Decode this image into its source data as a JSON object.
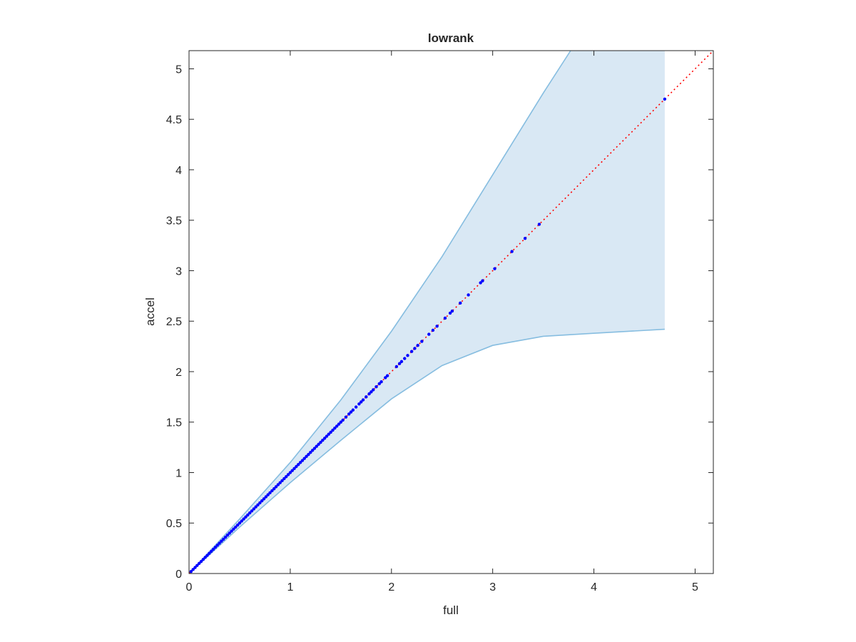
{
  "chart_data": {
    "type": "scatter",
    "title": "lowrank",
    "xlabel": "full",
    "ylabel": "accel",
    "xlim": [
      0,
      5.18
    ],
    "ylim": [
      0,
      5.18
    ],
    "xticks": [
      0,
      1,
      2,
      3,
      4,
      5
    ],
    "yticks": [
      0,
      0.5,
      1,
      1.5,
      2,
      2.5,
      3,
      3.5,
      4,
      4.5,
      5
    ],
    "xtick_labels": [
      "0",
      "1",
      "2",
      "3",
      "4",
      "5"
    ],
    "ytick_labels": [
      "0",
      "0.5",
      "1",
      "1.5",
      "2",
      "2.5",
      "3",
      "3.5",
      "4",
      "4.5",
      "5"
    ],
    "grid": false,
    "reference_line": {
      "style": "dotted",
      "color": "#ff0000",
      "x": [
        0,
        5.18
      ],
      "y": [
        0,
        5.18
      ]
    },
    "band": {
      "fill": "#d9e8f4",
      "edge": "#86bde0",
      "upper": {
        "x": [
          0,
          0.5,
          1,
          1.5,
          2,
          2.5,
          3,
          3.5,
          3.77
        ],
        "y": [
          0,
          0.54,
          1.1,
          1.72,
          2.4,
          3.14,
          3.95,
          4.76,
          5.18
        ]
      },
      "upper_cap": {
        "x": [
          3.77,
          4.7
        ],
        "y": [
          5.18,
          5.18
        ]
      },
      "right_edge": {
        "x": [
          4.7,
          4.7
        ],
        "y": [
          5.18,
          2.42
        ]
      },
      "lower": {
        "x": [
          0,
          0.5,
          1,
          1.5,
          2,
          2.5,
          3,
          3.5,
          4,
          4.7
        ],
        "y": [
          0,
          0.46,
          0.9,
          1.32,
          1.73,
          2.06,
          2.26,
          2.35,
          2.38,
          2.42
        ]
      }
    },
    "points": {
      "color": "#0000ff",
      "x": [
        0.02,
        0.04,
        0.06,
        0.08,
        0.1,
        0.12,
        0.14,
        0.16,
        0.18,
        0.2,
        0.22,
        0.24,
        0.26,
        0.28,
        0.3,
        0.32,
        0.34,
        0.36,
        0.38,
        0.4,
        0.42,
        0.44,
        0.46,
        0.48,
        0.5,
        0.52,
        0.54,
        0.56,
        0.58,
        0.6,
        0.62,
        0.64,
        0.66,
        0.68,
        0.7,
        0.72,
        0.74,
        0.76,
        0.78,
        0.8,
        0.82,
        0.84,
        0.86,
        0.88,
        0.9,
        0.92,
        0.94,
        0.96,
        0.98,
        1.0,
        1.02,
        1.04,
        1.06,
        1.08,
        1.1,
        1.12,
        1.14,
        1.16,
        1.18,
        1.2,
        1.22,
        1.24,
        1.26,
        1.28,
        1.3,
        1.32,
        1.34,
        1.36,
        1.38,
        1.4,
        1.42,
        1.44,
        1.46,
        1.48,
        1.5,
        1.52,
        1.55,
        1.58,
        1.6,
        1.62,
        1.65,
        1.68,
        1.7,
        1.72,
        1.75,
        1.78,
        1.8,
        1.82,
        1.85,
        1.88,
        1.9,
        1.94,
        1.96,
        2.05,
        2.08,
        2.1,
        2.13,
        2.16,
        2.2,
        2.23,
        2.26,
        2.3,
        2.37,
        2.41,
        2.45,
        2.53,
        2.58,
        2.6,
        2.68,
        2.76,
        2.88,
        2.9,
        3.02,
        3.19,
        3.32,
        3.46,
        4.7
      ],
      "y": [
        0.02,
        0.04,
        0.06,
        0.08,
        0.1,
        0.12,
        0.14,
        0.16,
        0.18,
        0.2,
        0.22,
        0.24,
        0.26,
        0.28,
        0.3,
        0.32,
        0.34,
        0.36,
        0.38,
        0.4,
        0.42,
        0.44,
        0.46,
        0.48,
        0.5,
        0.52,
        0.54,
        0.56,
        0.58,
        0.6,
        0.62,
        0.64,
        0.66,
        0.68,
        0.7,
        0.72,
        0.74,
        0.76,
        0.78,
        0.8,
        0.82,
        0.84,
        0.86,
        0.88,
        0.9,
        0.92,
        0.94,
        0.96,
        0.98,
        1.0,
        1.02,
        1.04,
        1.06,
        1.08,
        1.1,
        1.12,
        1.14,
        1.16,
        1.18,
        1.2,
        1.22,
        1.24,
        1.26,
        1.28,
        1.3,
        1.32,
        1.34,
        1.36,
        1.38,
        1.4,
        1.42,
        1.44,
        1.46,
        1.48,
        1.5,
        1.52,
        1.55,
        1.58,
        1.6,
        1.62,
        1.65,
        1.68,
        1.7,
        1.72,
        1.75,
        1.78,
        1.8,
        1.82,
        1.85,
        1.88,
        1.9,
        1.94,
        1.96,
        2.05,
        2.08,
        2.1,
        2.13,
        2.16,
        2.2,
        2.23,
        2.26,
        2.3,
        2.37,
        2.41,
        2.45,
        2.53,
        2.58,
        2.6,
        2.68,
        2.76,
        2.88,
        2.9,
        3.02,
        3.19,
        3.32,
        3.46,
        4.7
      ]
    }
  }
}
